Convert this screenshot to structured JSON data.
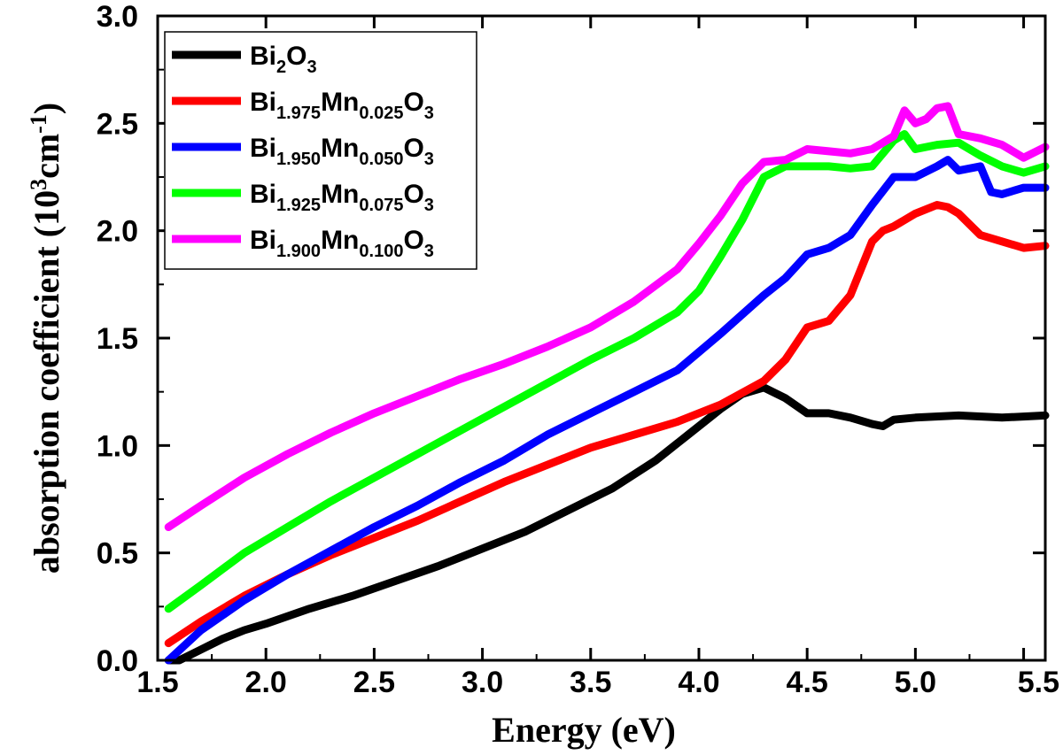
{
  "chart_data": {
    "type": "line",
    "title": "",
    "xlabel": "Energy (eV)",
    "ylabel": {
      "prefix": "absorption coefficient (10",
      "sup1": "3",
      "mid": "cm",
      "sup2": "-1",
      "suffix": ")"
    },
    "xlim": [
      1.5,
      5.6
    ],
    "ylim": [
      0.0,
      3.0
    ],
    "xticks": [
      "1.5",
      "2.0",
      "2.5",
      "3.0",
      "3.5",
      "4.0",
      "4.5",
      "5.0",
      "5.5"
    ],
    "yticks": [
      "0.0",
      "0.5",
      "1.0",
      "1.5",
      "2.0",
      "2.5",
      "3.0"
    ],
    "legend_position": "top-left",
    "series": [
      {
        "name": "Bi2O3",
        "label_parts": [
          [
            "Bi",
            ""
          ],
          [
            "2",
            "sub"
          ],
          [
            "O",
            ""
          ],
          [
            "3",
            "sub"
          ]
        ],
        "color": "#000000",
        "x": [
          1.55,
          1.6,
          1.7,
          1.8,
          1.9,
          2.0,
          2.2,
          2.4,
          2.6,
          2.8,
          3.0,
          3.2,
          3.4,
          3.6,
          3.8,
          3.95,
          4.1,
          4.2,
          4.3,
          4.4,
          4.5,
          4.55,
          4.6,
          4.7,
          4.8,
          4.85,
          4.9,
          5.0,
          5.2,
          5.4,
          5.6
        ],
        "y": [
          0.0,
          0.0,
          0.05,
          0.1,
          0.14,
          0.17,
          0.24,
          0.3,
          0.37,
          0.44,
          0.52,
          0.6,
          0.7,
          0.8,
          0.93,
          1.05,
          1.17,
          1.24,
          1.27,
          1.22,
          1.15,
          1.15,
          1.15,
          1.13,
          1.1,
          1.09,
          1.12,
          1.13,
          1.14,
          1.13,
          1.14
        ]
      },
      {
        "name": "Bi1.975Mn0.025O3",
        "label_parts": [
          [
            "Bi",
            ""
          ],
          [
            "1.975",
            "sub"
          ],
          [
            "Mn",
            ""
          ],
          [
            "0.025",
            "sub"
          ],
          [
            "O",
            ""
          ],
          [
            "3",
            "sub"
          ]
        ],
        "color": "#ff0000",
        "x": [
          1.55,
          1.7,
          1.9,
          2.1,
          2.3,
          2.5,
          2.7,
          2.9,
          3.1,
          3.3,
          3.5,
          3.7,
          3.9,
          4.1,
          4.3,
          4.4,
          4.5,
          4.6,
          4.7,
          4.8,
          4.85,
          4.9,
          5.0,
          5.1,
          5.15,
          5.2,
          5.3,
          5.4,
          5.5,
          5.6
        ],
        "y": [
          0.08,
          0.18,
          0.3,
          0.4,
          0.49,
          0.57,
          0.65,
          0.74,
          0.83,
          0.91,
          0.99,
          1.05,
          1.11,
          1.19,
          1.3,
          1.4,
          1.55,
          1.58,
          1.7,
          1.95,
          2.0,
          2.02,
          2.08,
          2.12,
          2.11,
          2.08,
          1.98,
          1.95,
          1.92,
          1.93
        ]
      },
      {
        "name": "Bi1.950Mn0.050O3",
        "label_parts": [
          [
            "Bi",
            ""
          ],
          [
            "1.950",
            "sub"
          ],
          [
            "Mn",
            ""
          ],
          [
            "0.050",
            "sub"
          ],
          [
            "O",
            ""
          ],
          [
            "3",
            "sub"
          ]
        ],
        "color": "#0000ff",
        "x": [
          1.55,
          1.7,
          1.9,
          2.1,
          2.3,
          2.5,
          2.7,
          2.9,
          3.1,
          3.3,
          3.5,
          3.7,
          3.9,
          4.1,
          4.3,
          4.4,
          4.5,
          4.6,
          4.7,
          4.8,
          4.9,
          5.0,
          5.1,
          5.15,
          5.2,
          5.3,
          5.35,
          5.4,
          5.5,
          5.6
        ],
        "y": [
          0.0,
          0.14,
          0.28,
          0.4,
          0.51,
          0.62,
          0.72,
          0.83,
          0.93,
          1.05,
          1.15,
          1.25,
          1.35,
          1.52,
          1.7,
          1.78,
          1.89,
          1.92,
          1.98,
          2.12,
          2.25,
          2.25,
          2.3,
          2.33,
          2.28,
          2.3,
          2.18,
          2.17,
          2.2,
          2.2
        ]
      },
      {
        "name": "Bi1.925Mn0.075O3",
        "label_parts": [
          [
            "Bi",
            ""
          ],
          [
            "1.925",
            "sub"
          ],
          [
            "Mn",
            ""
          ],
          [
            "0.075",
            "sub"
          ],
          [
            "O",
            ""
          ],
          [
            "3",
            "sub"
          ]
        ],
        "color": "#00ff00",
        "x": [
          1.55,
          1.7,
          1.9,
          2.1,
          2.3,
          2.5,
          2.7,
          2.9,
          3.1,
          3.3,
          3.5,
          3.7,
          3.9,
          4.0,
          4.1,
          4.2,
          4.3,
          4.4,
          4.5,
          4.6,
          4.7,
          4.8,
          4.9,
          4.95,
          5.0,
          5.1,
          5.2,
          5.3,
          5.4,
          5.5,
          5.6
        ],
        "y": [
          0.24,
          0.35,
          0.5,
          0.62,
          0.74,
          0.85,
          0.96,
          1.07,
          1.18,
          1.29,
          1.4,
          1.5,
          1.62,
          1.72,
          1.88,
          2.05,
          2.25,
          2.3,
          2.3,
          2.3,
          2.29,
          2.3,
          2.42,
          2.45,
          2.38,
          2.4,
          2.41,
          2.35,
          2.3,
          2.27,
          2.3
        ]
      },
      {
        "name": "Bi1.900Mn0.100O3",
        "label_parts": [
          [
            "Bi",
            ""
          ],
          [
            "1.900",
            "sub"
          ],
          [
            "Mn",
            ""
          ],
          [
            "0.100",
            "sub"
          ],
          [
            "O",
            ""
          ],
          [
            "3",
            "sub"
          ]
        ],
        "color": "#ff00ff",
        "x": [
          1.55,
          1.7,
          1.9,
          2.1,
          2.3,
          2.5,
          2.7,
          2.9,
          3.1,
          3.3,
          3.5,
          3.7,
          3.9,
          4.0,
          4.1,
          4.2,
          4.3,
          4.4,
          4.5,
          4.6,
          4.7,
          4.8,
          4.9,
          4.95,
          5.0,
          5.05,
          5.1,
          5.15,
          5.2,
          5.3,
          5.4,
          5.5,
          5.6
        ],
        "y": [
          0.62,
          0.72,
          0.85,
          0.96,
          1.06,
          1.15,
          1.23,
          1.31,
          1.38,
          1.46,
          1.55,
          1.67,
          1.82,
          1.94,
          2.07,
          2.22,
          2.32,
          2.33,
          2.38,
          2.37,
          2.36,
          2.38,
          2.44,
          2.56,
          2.5,
          2.52,
          2.57,
          2.58,
          2.45,
          2.43,
          2.4,
          2.34,
          2.39
        ]
      }
    ]
  }
}
